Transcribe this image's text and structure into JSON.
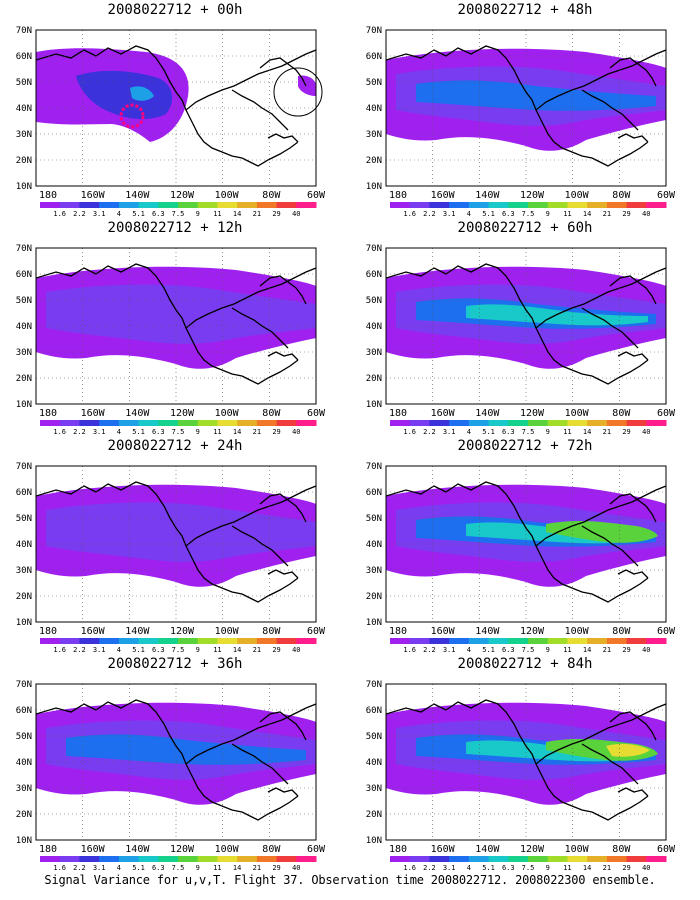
{
  "figure": {
    "footer": "Signal Variance for u,v,T. Flight 37. Observation time 2008022712. 2008022300 ensemble.",
    "lat_labels": [
      "70N",
      "60N",
      "50N",
      "40N",
      "30N",
      "20N",
      "10N"
    ],
    "lon_labels": [
      "180",
      "160W",
      "140W",
      "120W",
      "100W",
      "80W",
      "60W"
    ],
    "colorbar": {
      "labels": [
        "1.6",
        "2.2",
        "3.1",
        "4",
        "5.1",
        "6.3",
        "7.5",
        "9",
        "11",
        "14",
        "21",
        "29",
        "40"
      ],
      "colors": [
        "#a020f0",
        "#7a3cf0",
        "#3c32dc",
        "#1e6ef0",
        "#1ea0e6",
        "#19c8c8",
        "#14d28c",
        "#5ad23c",
        "#a0dc28",
        "#e6dc32",
        "#e6af28",
        "#f07828",
        "#f03c3c",
        "#ff1e8c"
      ]
    },
    "markers": {
      "dashed_circle_color": "#ff0080"
    }
  },
  "panels": [
    {
      "id": "00h",
      "date": "2008022712",
      "lead": "00h",
      "level": 0
    },
    {
      "id": "48h",
      "date": "2008022712",
      "lead": "48h",
      "level": 2
    },
    {
      "id": "12h",
      "date": "2008022712",
      "lead": "12h",
      "level": 1
    },
    {
      "id": "60h",
      "date": "2008022712",
      "lead": "60h",
      "level": 3
    },
    {
      "id": "24h",
      "date": "2008022712",
      "lead": "24h",
      "level": 1
    },
    {
      "id": "72h",
      "date": "2008022712",
      "lead": "72h",
      "level": 4
    },
    {
      "id": "36h",
      "date": "2008022712",
      "lead": "36h",
      "level": 2
    },
    {
      "id": "84h",
      "date": "2008022712",
      "lead": "84h",
      "level": 5
    }
  ]
}
